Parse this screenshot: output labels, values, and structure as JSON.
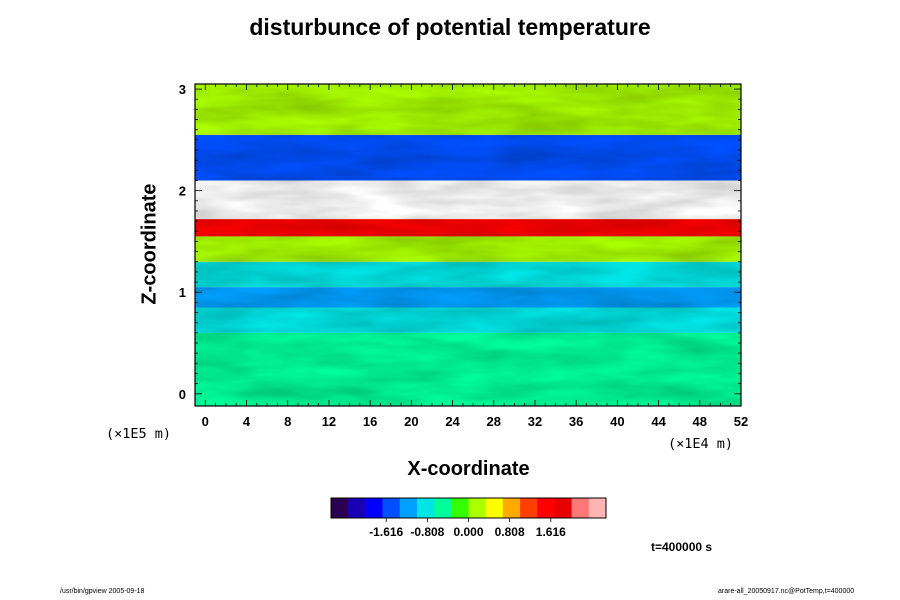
{
  "chart_data": {
    "type": "heatmap",
    "title": "disturbunce of potential temperature",
    "xlabel": "X-coordinate",
    "ylabel": "Z-coordinate",
    "x_unit": "(×1E4 m)",
    "y_unit": "(×1E5 m)",
    "xlim": [
      -1,
      52
    ],
    "ylim": [
      -0.12,
      3.05
    ],
    "x_ticks": [
      "0",
      "4",
      "8",
      "12",
      "16",
      "20",
      "24",
      "28",
      "32",
      "36",
      "40",
      "44",
      "48",
      "52"
    ],
    "y_ticks": [
      "0",
      "1",
      "2",
      "3"
    ],
    "colorbar": {
      "range": [
        -2.7,
        2.7
      ],
      "ticks": [
        "-1.616",
        "-0.808",
        "0.000",
        "0.808",
        "1.616"
      ],
      "colors": [
        "#2a0050",
        "#1a00b4",
        "#0000ff",
        "#0050ff",
        "#00a0ff",
        "#00e6e6",
        "#00ff9a",
        "#33ff00",
        "#aaff00",
        "#ffff00",
        "#ffaa00",
        "#ff4000",
        "#ff0000",
        "#e60000",
        "#ff7878",
        "#ffb4b4"
      ]
    },
    "field_bands": [
      {
        "z_range": [
          -0.12,
          0.6
        ],
        "value": -0.6
      },
      {
        "z_range": [
          0.6,
          0.85
        ],
        "value": -0.95
      },
      {
        "z_range": [
          0.85,
          1.05
        ],
        "value": -1.3
      },
      {
        "z_range": [
          1.05,
          1.3
        ],
        "value": -0.8
      },
      {
        "z_range": [
          1.3,
          1.55
        ],
        "value": 0.2
      },
      {
        "z_range": [
          1.55,
          1.72
        ],
        "value": 1.6
      },
      {
        "z_range": [
          1.72,
          2.1
        ],
        "value": null
      },
      {
        "z_range": [
          2.1,
          2.55
        ],
        "value": -1.6
      },
      {
        "z_range": [
          2.55,
          3.05
        ],
        "value": 0.1
      }
    ],
    "time_label": "t=400000 s"
  },
  "footer": {
    "left": "/usr/bin/gpview 2005-09-18",
    "right": "arare-all_20050917.nc@PotTemp,t=400000"
  }
}
